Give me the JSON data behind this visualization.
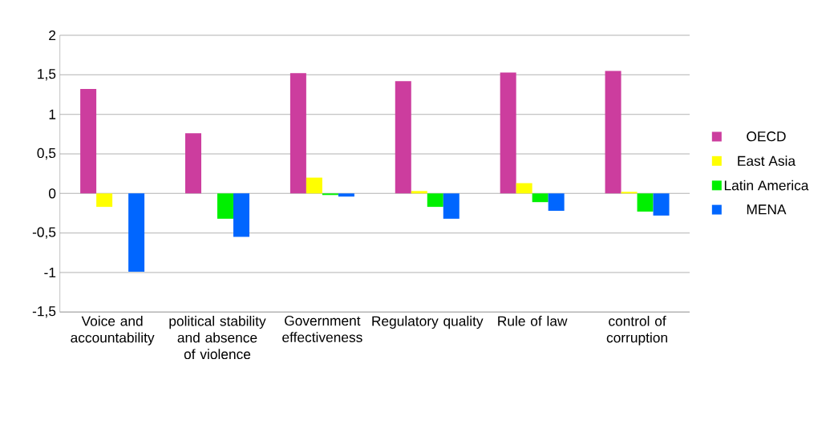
{
  "chart_data": {
    "type": "bar",
    "categories": [
      "Voice and accountability",
      "political stability and absence of violence",
      "Government effectiveness",
      "Regulatory quality",
      "Rule of law",
      "control of corruption"
    ],
    "series": [
      {
        "name": "OECD",
        "color": "#cc3d9e",
        "values": [
          1.32,
          0.76,
          1.52,
          1.42,
          1.53,
          1.55
        ]
      },
      {
        "name": "East Asia",
        "color": "#ffff00",
        "values": [
          -0.17,
          0.0,
          0.2,
          0.03,
          0.13,
          0.02
        ]
      },
      {
        "name": "Latin America",
        "color": "#00f000",
        "values": [
          0.0,
          -0.32,
          -0.02,
          -0.17,
          -0.11,
          -0.23
        ]
      },
      {
        "name": "MENA",
        "color": "#0066ff",
        "values": [
          -0.99,
          -0.55,
          -0.04,
          -0.32,
          -0.22,
          -0.28
        ]
      }
    ],
    "ylim": [
      -1.5,
      2
    ],
    "yticks": [
      {
        "value": -1.5,
        "label": "-1,5"
      },
      -1,
      {
        "value": -0.5,
        "label": "-0,5"
      },
      0,
      {
        "value": 0.5,
        "label": "0,5"
      },
      1,
      {
        "value": 1.5,
        "label": "1,5"
      },
      2
    ],
    "grid": "y",
    "legend": "right"
  }
}
